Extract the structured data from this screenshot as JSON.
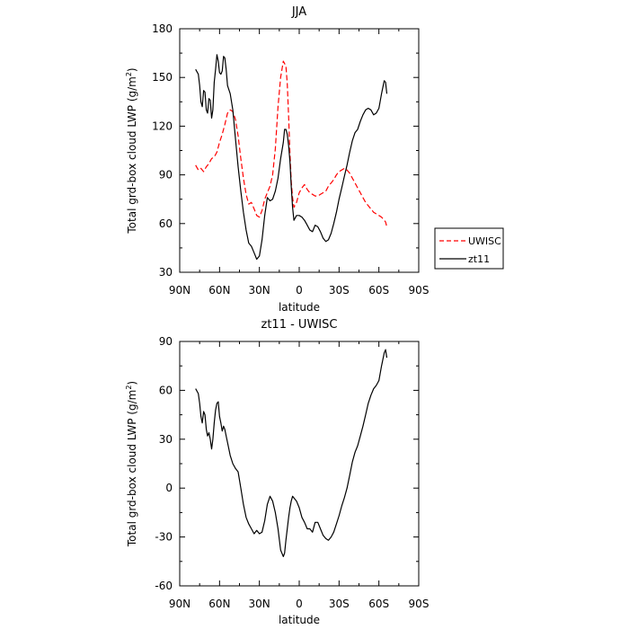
{
  "chart_data": [
    {
      "type": "line",
      "title": "JJA",
      "xlabel": "latitude",
      "ylabel": "Total grd-box cloud LWP (g/m",
      "ylabel_sup": "2",
      "ylabel_end": ")",
      "xlim": [
        90,
        -90
      ],
      "ylim": [
        30,
        180
      ],
      "xticks": [
        {
          "value": 90,
          "label": "90N"
        },
        {
          "value": 60,
          "label": "60N"
        },
        {
          "value": 30,
          "label": "30N"
        },
        {
          "value": 0,
          "label": "0"
        },
        {
          "value": -30,
          "label": "30S"
        },
        {
          "value": -60,
          "label": "60S"
        },
        {
          "value": -90,
          "label": "90S"
        }
      ],
      "yticks": [
        {
          "value": 30,
          "label": "30"
        },
        {
          "value": 60,
          "label": "60"
        },
        {
          "value": 90,
          "label": "90"
        },
        {
          "value": 120,
          "label": "120"
        },
        {
          "value": 150,
          "label": "150"
        },
        {
          "value": 180,
          "label": "180"
        }
      ],
      "legend_position": "right, outside",
      "series": [
        {
          "name": "UWISC",
          "color": "#ff0000",
          "dash": true,
          "x": [
            78,
            76,
            74,
            72,
            70,
            68,
            66,
            64,
            62,
            60,
            58,
            56,
            54,
            52,
            50,
            48,
            46,
            44,
            42,
            40,
            38,
            36,
            34,
            32,
            30,
            28,
            26,
            24,
            22,
            20,
            18,
            16,
            14,
            12,
            10,
            9,
            8,
            7,
            6,
            5,
            4,
            2,
            0,
            -2,
            -4,
            -6,
            -8,
            -10,
            -12,
            -14,
            -16,
            -18,
            -20,
            -22,
            -24,
            -26,
            -28,
            -30,
            -32,
            -34,
            -36,
            -38,
            -40,
            -42,
            -44,
            -46,
            -48,
            -50,
            -52,
            -54,
            -56,
            -58,
            -60,
            -62,
            -64,
            -65,
            -66
          ],
          "y": [
            96,
            93,
            94,
            92,
            95,
            97,
            100,
            101,
            104,
            110,
            115,
            121,
            128,
            130,
            129,
            124,
            114,
            100,
            88,
            78,
            72,
            73,
            69,
            65,
            64,
            68,
            75,
            79,
            83,
            90,
            106,
            132,
            150,
            160,
            157,
            146,
            126,
            103,
            86,
            76,
            70,
            73,
            79,
            82,
            84,
            81,
            79,
            78,
            77,
            77,
            78,
            79,
            80,
            83,
            85,
            87,
            90,
            92,
            93,
            94,
            93,
            91,
            88,
            85,
            82,
            79,
            76,
            73,
            71,
            69,
            67,
            66,
            65,
            64,
            62,
            61,
            58
          ]
        },
        {
          "name": "zt11",
          "color": "#000000",
          "dash": false,
          "x": [
            78,
            76,
            75,
            74,
            73,
            72,
            71,
            70,
            69,
            68,
            67,
            66,
            65,
            64,
            63,
            62,
            61,
            60,
            59,
            58,
            57,
            56,
            55,
            54,
            52,
            50,
            48,
            46,
            44,
            42,
            40,
            38,
            36,
            34,
            32,
            30,
            28,
            26,
            24,
            22,
            20,
            18,
            16,
            14,
            12,
            11,
            10,
            9,
            8,
            7,
            6,
            5,
            4,
            2,
            0,
            -2,
            -4,
            -6,
            -8,
            -10,
            -12,
            -14,
            -16,
            -18,
            -20,
            -22,
            -24,
            -26,
            -28,
            -30,
            -32,
            -34,
            -36,
            -38,
            -40,
            -42,
            -44,
            -46,
            -48,
            -50,
            -52,
            -54,
            -56,
            -58,
            -60,
            -62,
            -64,
            -65,
            -66
          ],
          "y": [
            155,
            152,
            145,
            135,
            132,
            142,
            141,
            130,
            128,
            137,
            136,
            125,
            130,
            147,
            155,
            164,
            160,
            153,
            152,
            154,
            163,
            162,
            155,
            145,
            140,
            130,
            112,
            95,
            80,
            67,
            56,
            48,
            46,
            42,
            38,
            40,
            50,
            65,
            76,
            74,
            75,
            80,
            88,
            100,
            110,
            118,
            118,
            115,
            108,
            98,
            83,
            70,
            62,
            65,
            65,
            64,
            62,
            59,
            56,
            55,
            59,
            58,
            55,
            51,
            49,
            50,
            54,
            60,
            67,
            75,
            82,
            89,
            96,
            104,
            111,
            116,
            118,
            123,
            127,
            130,
            131,
            130,
            127,
            128,
            131,
            140,
            148,
            147,
            140
          ]
        }
      ]
    },
    {
      "type": "line",
      "title": "zt11 - UWISC",
      "xlabel": "latitude",
      "ylabel": "Total grd-box cloud LWP (g/m",
      "ylabel_sup": "2",
      "ylabel_end": ")",
      "xlim": [
        90,
        -90
      ],
      "ylim": [
        -60,
        90
      ],
      "xticks": [
        {
          "value": 90,
          "label": "90N"
        },
        {
          "value": 60,
          "label": "60N"
        },
        {
          "value": 30,
          "label": "30N"
        },
        {
          "value": 0,
          "label": "0"
        },
        {
          "value": -30,
          "label": "30S"
        },
        {
          "value": -60,
          "label": "60S"
        },
        {
          "value": -90,
          "label": "90S"
        }
      ],
      "yticks": [
        {
          "value": -60,
          "label": "-60"
        },
        {
          "value": -30,
          "label": "-30"
        },
        {
          "value": 0,
          "label": "0"
        },
        {
          "value": 30,
          "label": "30"
        },
        {
          "value": 60,
          "label": "60"
        },
        {
          "value": 90,
          "label": "90"
        }
      ],
      "series": [
        {
          "color": "#000000",
          "dash": false,
          "x": [
            78,
            76,
            75,
            74,
            73,
            72,
            71,
            70,
            69,
            68,
            67,
            66,
            65,
            64,
            63,
            62,
            61,
            60,
            59,
            58,
            57,
            56,
            55,
            54,
            52,
            50,
            48,
            46,
            44,
            42,
            40,
            38,
            36,
            34,
            32,
            30,
            28,
            26,
            24,
            22,
            20,
            18,
            16,
            14,
            12,
            11,
            10,
            9,
            8,
            7,
            6,
            5,
            4,
            2,
            0,
            -2,
            -4,
            -6,
            -8,
            -10,
            -12,
            -14,
            -16,
            -18,
            -20,
            -22,
            -24,
            -26,
            -28,
            -30,
            -32,
            -34,
            -36,
            -38,
            -40,
            -42,
            -44,
            -46,
            -48,
            -50,
            -52,
            -54,
            -56,
            -58,
            -60,
            -62,
            -64,
            -65,
            -66
          ],
          "y": [
            61,
            58,
            52,
            44,
            40,
            47,
            45,
            36,
            32,
            34,
            30,
            24,
            30,
            40,
            48,
            52,
            53,
            44,
            40,
            35,
            38,
            36,
            32,
            28,
            20,
            15,
            12,
            10,
            0,
            -10,
            -18,
            -22,
            -25,
            -28,
            -26,
            -28,
            -27,
            -20,
            -10,
            -5,
            -8,
            -15,
            -25,
            -38,
            -42,
            -40,
            -32,
            -25,
            -18,
            -12,
            -8,
            -5,
            -6,
            -8,
            -12,
            -18,
            -21,
            -25,
            -25,
            -27,
            -21,
            -21,
            -25,
            -29,
            -31,
            -32,
            -30,
            -27,
            -22,
            -17,
            -11,
            -6,
            0,
            8,
            16,
            22,
            26,
            32,
            38,
            45,
            52,
            57,
            61,
            63,
            66,
            75,
            83,
            85,
            80
          ]
        }
      ]
    }
  ]
}
